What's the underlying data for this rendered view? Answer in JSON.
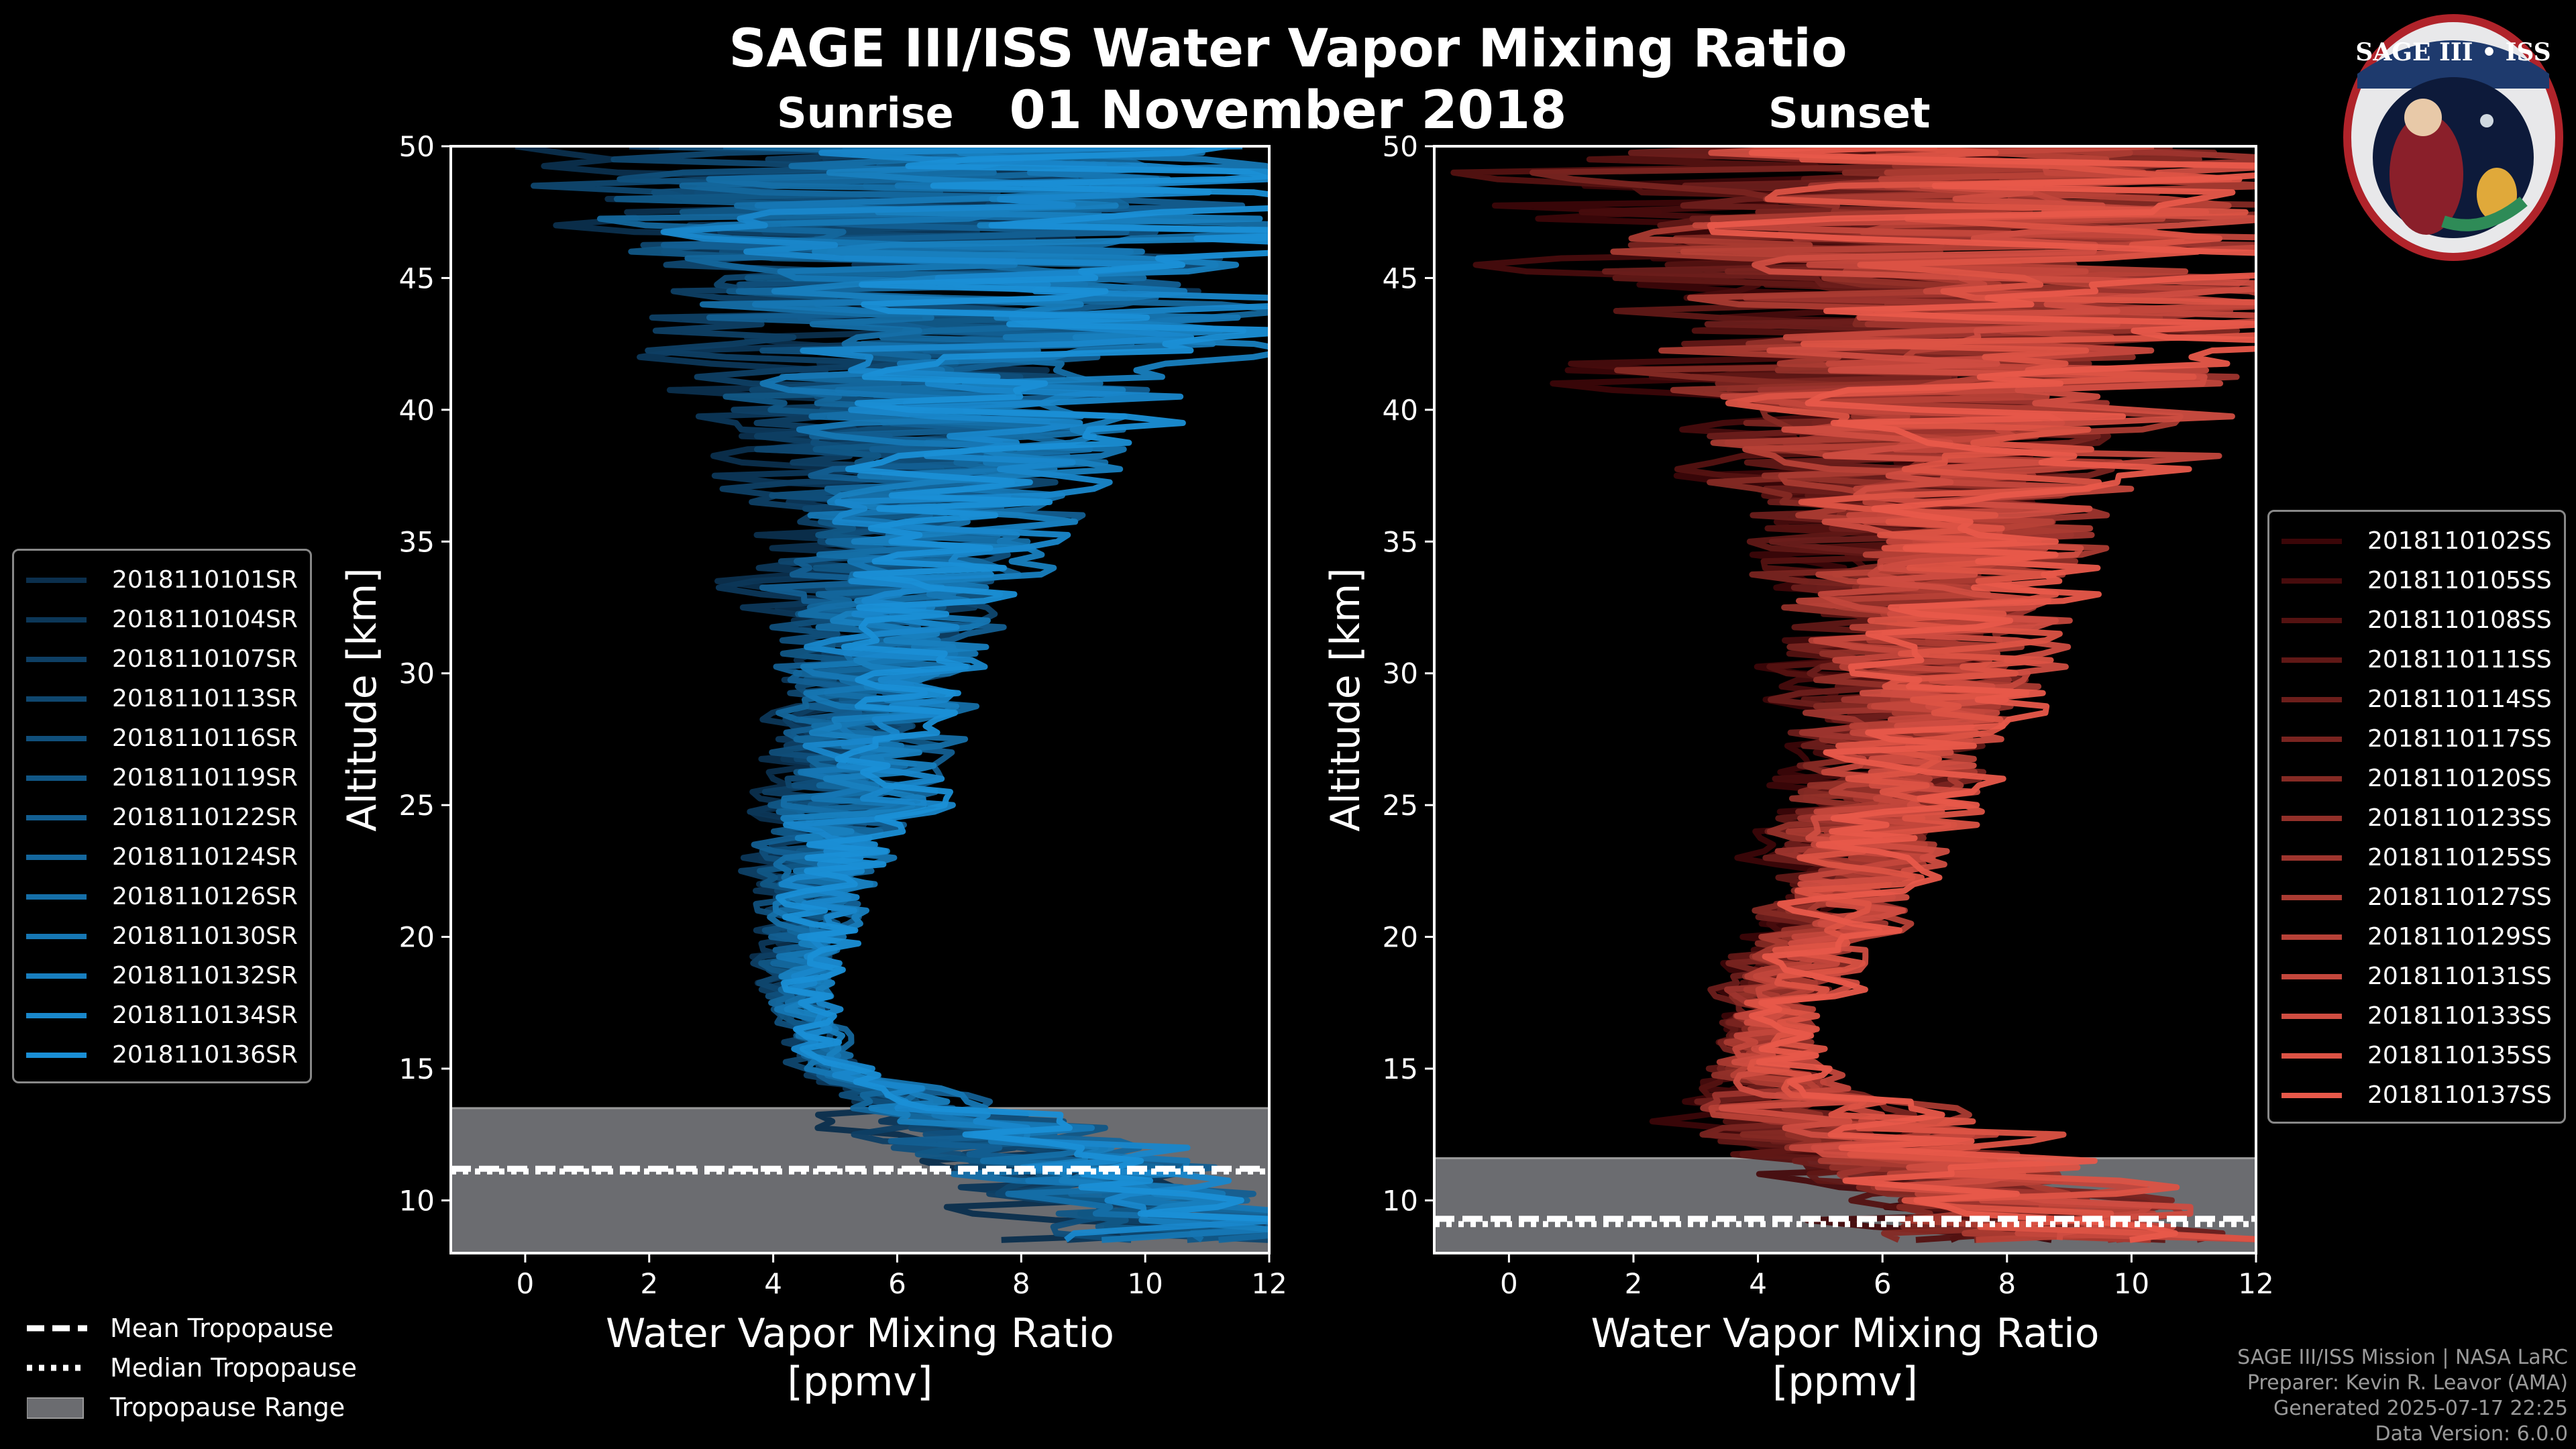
{
  "title": "SAGE III/ISS Water Vapor Mixing Ratio",
  "date": "01 November 2018",
  "colors": {
    "sunrise": "#1a8fd6",
    "sunset": "#e8594a",
    "tropopause": "#6b6c70"
  },
  "chart_data": [
    {
      "type": "line",
      "panel": "Sunrise",
      "xlabel": "Water Vapor Mixing Ratio\n[ppmv]",
      "ylabel": "Altitude [km]",
      "xlim": [
        -1.2,
        12
      ],
      "ylim": [
        8,
        50
      ],
      "xticks": [
        0,
        2,
        4,
        6,
        8,
        10,
        12
      ],
      "yticks": [
        10,
        15,
        20,
        25,
        30,
        35,
        40,
        45,
        50
      ],
      "tropopause": {
        "mean": 11.2,
        "median": 11.1,
        "range": [
          8,
          13.5
        ]
      },
      "series_names": [
        "2018110101SR",
        "2018110104SR",
        "2018110107SR",
        "2018110113SR",
        "2018110116SR",
        "2018110119SR",
        "2018110122SR",
        "2018110124SR",
        "2018110126SR",
        "2018110130SR",
        "2018110132SR",
        "2018110134SR",
        "2018110136SR"
      ],
      "profile_envelope": {
        "altitude": [
          8.5,
          10,
          11,
          12,
          13,
          14,
          15,
          16,
          17,
          18,
          19,
          20,
          21,
          22,
          23,
          24,
          25,
          26,
          27,
          28,
          29,
          30,
          31,
          32,
          33,
          34,
          35,
          36,
          37,
          38,
          39,
          40,
          41,
          42,
          43,
          44,
          45,
          46,
          47,
          48,
          49,
          50
        ],
        "center": [
          11,
          10,
          9,
          8,
          7,
          5.8,
          5.0,
          4.7,
          4.5,
          4.4,
          4.4,
          4.5,
          4.6,
          4.7,
          4.9,
          5.0,
          5.2,
          5.3,
          5.4,
          5.5,
          5.6,
          5.7,
          5.8,
          5.9,
          6.0,
          6.2,
          6.3,
          6.4,
          6.5,
          6.6,
          6.7,
          6.8,
          6.9,
          7.0,
          7.0,
          7.0,
          7.0,
          7.0,
          7.0,
          7.0,
          7.0,
          7.0
        ],
        "spread": [
          3.0,
          3.0,
          3.0,
          3.0,
          2.5,
          1.2,
          0.8,
          0.7,
          0.7,
          0.8,
          0.9,
          1.0,
          1.1,
          1.3,
          1.4,
          1.5,
          1.6,
          1.7,
          1.8,
          1.9,
          2.0,
          2.1,
          2.2,
          2.4,
          2.6,
          2.8,
          3.0,
          3.1,
          3.3,
          3.6,
          3.8,
          4.0,
          4.5,
          5.0,
          5.5,
          6.0,
          6.5,
          7.0,
          7.0,
          7.0,
          7.0,
          7.0
        ]
      }
    },
    {
      "type": "line",
      "panel": "Sunset",
      "xlabel": "Water Vapor Mixing Ratio\n[ppmv]",
      "ylabel": "Altitude [km]",
      "xlim": [
        -1.2,
        12
      ],
      "ylim": [
        8,
        50
      ],
      "xticks": [
        0,
        2,
        4,
        6,
        8,
        10,
        12
      ],
      "yticks": [
        10,
        15,
        20,
        25,
        30,
        35,
        40,
        45,
        50
      ],
      "tropopause": {
        "mean": 9.3,
        "median": 9.1,
        "range": [
          8,
          11.6
        ]
      },
      "series_names": [
        "2018110102SS",
        "2018110105SS",
        "2018110108SS",
        "2018110111SS",
        "2018110114SS",
        "2018110117SS",
        "2018110120SS",
        "2018110123SS",
        "2018110125SS",
        "2018110127SS",
        "2018110129SS",
        "2018110131SS",
        "2018110133SS",
        "2018110135SS",
        "2018110137SS"
      ],
      "profile_envelope": {
        "altitude": [
          8.5,
          10,
          11,
          12,
          13,
          14,
          15,
          16,
          17,
          18,
          19,
          20,
          21,
          22,
          23,
          24,
          25,
          26,
          27,
          28,
          29,
          30,
          31,
          32,
          33,
          34,
          35,
          36,
          37,
          38,
          39,
          40,
          41,
          42,
          43,
          44,
          45,
          46,
          47,
          48,
          49,
          50
        ],
        "center": [
          9,
          8,
          7,
          6,
          5,
          4.5,
          4.0,
          4.0,
          4.2,
          4.5,
          4.7,
          5.0,
          5.2,
          5.4,
          5.6,
          5.8,
          6.0,
          6.1,
          6.2,
          6.3,
          6.4,
          6.5,
          6.6,
          6.7,
          6.8,
          6.9,
          7.0,
          7.0,
          7.0,
          7.0,
          7.0,
          7.0,
          7.0,
          7.0,
          7.0,
          7.0,
          7.0,
          7.0,
          7.0,
          7.0,
          7.0,
          7.0
        ],
        "spread": [
          3.5,
          3.5,
          3.5,
          3.5,
          3.0,
          1.6,
          1.2,
          1.1,
          1.1,
          1.2,
          1.3,
          1.4,
          1.6,
          1.7,
          1.8,
          1.9,
          2.0,
          2.1,
          2.2,
          2.3,
          2.4,
          2.5,
          2.6,
          2.8,
          3.0,
          3.2,
          3.4,
          3.7,
          4.0,
          4.5,
          5.0,
          5.5,
          6.0,
          6.5,
          7.0,
          7.0,
          7.0,
          7.0,
          7.0,
          7.0,
          7.0,
          7.0
        ]
      }
    }
  ],
  "sunrise_label": "Sunrise",
  "sunset_label": "Sunset",
  "tropo_legend": [
    "Mean Tropopause",
    "Median Tropopause",
    "Tropopause Range"
  ],
  "credits": [
    "SAGE III/ISS Mission | NASA LaRC",
    "Preparer: Kevin R. Leavor (AMA)",
    "Generated 2025-07-17 22:25",
    "Data Version: 6.0.0"
  ],
  "logo_text": "SAGE III • ISS"
}
